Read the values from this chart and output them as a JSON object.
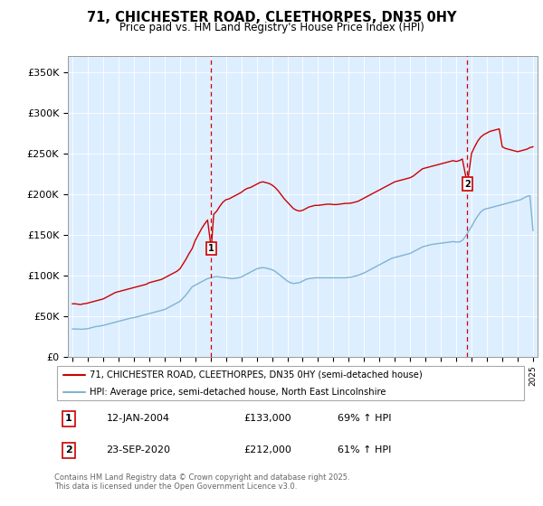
{
  "title": "71, CHICHESTER ROAD, CLEETHORPES, DN35 0HY",
  "subtitle": "Price paid vs. HM Land Registry's House Price Index (HPI)",
  "ylabel_ticks": [
    "£0",
    "£50K",
    "£100K",
    "£150K",
    "£200K",
    "£250K",
    "£300K",
    "£350K"
  ],
  "ytick_values": [
    0,
    50000,
    100000,
    150000,
    200000,
    250000,
    300000,
    350000
  ],
  "ylim": [
    0,
    370000
  ],
  "sale1_year": 2004.04,
  "sale1_price": 133000,
  "sale2_year": 2020.72,
  "sale2_price": 212000,
  "legend_line1": "71, CHICHESTER ROAD, CLEETHORPES, DN35 0HY (semi-detached house)",
  "legend_line2": "HPI: Average price, semi-detached house, North East Lincolnshire",
  "footer": "Contains HM Land Registry data © Crown copyright and database right 2025.\nThis data is licensed under the Open Government Licence v3.0.",
  "red_color": "#cc0000",
  "blue_color": "#7fb3d3",
  "bg_color": "#ddeeff",
  "hpi_x": [
    1995.0,
    1995.1,
    1995.2,
    1995.3,
    1995.4,
    1995.5,
    1995.6,
    1995.7,
    1995.8,
    1995.9,
    1996.0,
    1996.1,
    1996.2,
    1996.3,
    1996.4,
    1996.5,
    1996.6,
    1996.7,
    1996.8,
    1996.9,
    1997.0,
    1997.1,
    1997.2,
    1997.3,
    1997.4,
    1997.5,
    1997.6,
    1997.7,
    1997.8,
    1997.9,
    1998.0,
    1998.2,
    1998.4,
    1998.6,
    1998.8,
    1999.0,
    1999.2,
    1999.4,
    1999.6,
    1999.8,
    2000.0,
    2000.2,
    2000.4,
    2000.6,
    2000.8,
    2001.0,
    2001.2,
    2001.4,
    2001.6,
    2001.8,
    2002.0,
    2002.2,
    2002.4,
    2002.6,
    2002.8,
    2003.0,
    2003.2,
    2003.4,
    2003.6,
    2003.8,
    2004.0,
    2004.2,
    2004.4,
    2004.6,
    2004.8,
    2005.0,
    2005.2,
    2005.4,
    2005.6,
    2005.8,
    2006.0,
    2006.2,
    2006.4,
    2006.6,
    2006.8,
    2007.0,
    2007.2,
    2007.4,
    2007.6,
    2007.8,
    2008.0,
    2008.2,
    2008.4,
    2008.6,
    2008.8,
    2009.0,
    2009.2,
    2009.4,
    2009.6,
    2009.8,
    2010.0,
    2010.2,
    2010.4,
    2010.6,
    2010.8,
    2011.0,
    2011.2,
    2011.4,
    2011.6,
    2011.8,
    2012.0,
    2012.2,
    2012.4,
    2012.6,
    2012.8,
    2013.0,
    2013.2,
    2013.4,
    2013.6,
    2013.8,
    2014.0,
    2014.2,
    2014.4,
    2014.6,
    2014.8,
    2015.0,
    2015.2,
    2015.4,
    2015.6,
    2015.8,
    2016.0,
    2016.2,
    2016.4,
    2016.6,
    2016.8,
    2017.0,
    2017.2,
    2017.4,
    2017.6,
    2017.8,
    2018.0,
    2018.2,
    2018.4,
    2018.6,
    2018.8,
    2019.0,
    2019.2,
    2019.4,
    2019.6,
    2019.8,
    2020.0,
    2020.2,
    2020.4,
    2020.6,
    2020.8,
    2021.0,
    2021.2,
    2021.4,
    2021.6,
    2021.8,
    2022.0,
    2022.2,
    2022.4,
    2022.6,
    2022.8,
    2023.0,
    2023.2,
    2023.4,
    2023.6,
    2023.8,
    2024.0,
    2024.2,
    2024.4,
    2024.6,
    2024.8,
    2025.0
  ],
  "hpi_y": [
    34000,
    34200,
    34100,
    33900,
    33800,
    33700,
    33800,
    34000,
    34100,
    34200,
    34500,
    35000,
    35500,
    36000,
    36500,
    37000,
    37200,
    37500,
    37800,
    38000,
    38500,
    39000,
    39500,
    40000,
    40500,
    41000,
    41500,
    42000,
    42500,
    43000,
    43500,
    44500,
    45500,
    46500,
    47500,
    48000,
    49000,
    50000,
    51000,
    52000,
    53000,
    54000,
    55000,
    56000,
    57000,
    58000,
    60000,
    62000,
    64000,
    66000,
    68000,
    72000,
    76000,
    81000,
    86000,
    88000,
    90000,
    92000,
    94000,
    96000,
    97000,
    98000,
    98500,
    98000,
    97500,
    97000,
    96500,
    96000,
    96500,
    97000,
    98000,
    100000,
    102000,
    104000,
    106000,
    108000,
    109000,
    109500,
    109000,
    108000,
    107000,
    105000,
    102000,
    99000,
    96000,
    93000,
    91000,
    90000,
    90500,
    91000,
    93000,
    95000,
    96000,
    96500,
    97000,
    97000,
    97000,
    97000,
    97000,
    97000,
    97000,
    97000,
    97000,
    97000,
    97000,
    97500,
    98000,
    99000,
    100000,
    101500,
    103000,
    105000,
    107000,
    109000,
    111000,
    113000,
    115000,
    117000,
    119000,
    121000,
    122000,
    123000,
    124000,
    125000,
    126000,
    127000,
    129000,
    131000,
    133000,
    135000,
    136000,
    137000,
    138000,
    138500,
    139000,
    139500,
    140000,
    140500,
    141000,
    141500,
    141000,
    141000,
    143000,
    148000,
    154000,
    160000,
    167000,
    173000,
    178000,
    181000,
    182000,
    183000,
    184000,
    185000,
    186000,
    187000,
    188000,
    189000,
    190000,
    191000,
    192000,
    193000,
    195000,
    197000,
    198000,
    155000
  ],
  "red_x": [
    1995.0,
    1995.1,
    1995.2,
    1995.3,
    1995.4,
    1995.5,
    1995.6,
    1995.7,
    1995.8,
    1995.9,
    1996.0,
    1996.1,
    1996.2,
    1996.3,
    1996.4,
    1996.5,
    1996.6,
    1996.7,
    1996.8,
    1996.9,
    1997.0,
    1997.1,
    1997.2,
    1997.3,
    1997.4,
    1997.5,
    1997.6,
    1997.7,
    1997.8,
    1997.9,
    1998.0,
    1998.2,
    1998.4,
    1998.6,
    1998.8,
    1999.0,
    1999.2,
    1999.4,
    1999.6,
    1999.8,
    2000.0,
    2000.2,
    2000.4,
    2000.6,
    2000.8,
    2001.0,
    2001.2,
    2001.4,
    2001.6,
    2001.8,
    2002.0,
    2002.2,
    2002.4,
    2002.6,
    2002.8,
    2003.0,
    2003.2,
    2003.4,
    2003.6,
    2003.8,
    2004.04,
    2004.2,
    2004.4,
    2004.6,
    2004.8,
    2005.0,
    2005.2,
    2005.4,
    2005.6,
    2005.8,
    2006.0,
    2006.2,
    2006.4,
    2006.6,
    2006.8,
    2007.0,
    2007.2,
    2007.4,
    2007.6,
    2007.8,
    2008.0,
    2008.2,
    2008.4,
    2008.6,
    2008.8,
    2009.0,
    2009.2,
    2009.4,
    2009.6,
    2009.8,
    2010.0,
    2010.2,
    2010.4,
    2010.6,
    2010.8,
    2011.0,
    2011.2,
    2011.4,
    2011.6,
    2011.8,
    2012.0,
    2012.2,
    2012.4,
    2012.6,
    2012.8,
    2013.0,
    2013.2,
    2013.4,
    2013.6,
    2013.8,
    2014.0,
    2014.2,
    2014.4,
    2014.6,
    2014.8,
    2015.0,
    2015.2,
    2015.4,
    2015.6,
    2015.8,
    2016.0,
    2016.2,
    2016.4,
    2016.6,
    2016.8,
    2017.0,
    2017.2,
    2017.4,
    2017.6,
    2017.8,
    2018.0,
    2018.2,
    2018.4,
    2018.6,
    2018.8,
    2019.0,
    2019.2,
    2019.4,
    2019.6,
    2019.8,
    2020.0,
    2020.2,
    2020.4,
    2020.72,
    2021.0,
    2021.2,
    2021.4,
    2021.6,
    2021.8,
    2022.0,
    2022.2,
    2022.4,
    2022.6,
    2022.8,
    2023.0,
    2023.2,
    2023.4,
    2023.6,
    2023.8,
    2024.0,
    2024.2,
    2024.4,
    2024.6,
    2024.8,
    2025.0
  ],
  "red_y": [
    65000,
    65200,
    65000,
    64800,
    64500,
    64200,
    64500,
    65000,
    65200,
    65500,
    66000,
    66500,
    67000,
    67500,
    68000,
    68500,
    69000,
    69500,
    70000,
    70500,
    71000,
    72000,
    73000,
    74000,
    75000,
    76000,
    77000,
    78000,
    79000,
    79500,
    80000,
    81000,
    82000,
    83000,
    84000,
    85000,
    86000,
    87000,
    88000,
    89000,
    91000,
    92000,
    93000,
    94000,
    95000,
    97000,
    99000,
    101000,
    103000,
    105000,
    108000,
    114000,
    120000,
    127000,
    133000,
    143000,
    150000,
    157000,
    163000,
    168000,
    133000,
    175000,
    179000,
    185000,
    190000,
    193000,
    194000,
    196000,
    198000,
    200000,
    202000,
    205000,
    207000,
    208000,
    210000,
    212000,
    214000,
    215000,
    214000,
    213000,
    211000,
    208000,
    204000,
    199000,
    194000,
    190000,
    186000,
    182000,
    180000,
    179000,
    180000,
    182000,
    184000,
    185000,
    186000,
    186000,
    186500,
    187000,
    187500,
    187500,
    187000,
    187000,
    187500,
    188000,
    188500,
    188500,
    189000,
    190000,
    191000,
    193000,
    195000,
    197000,
    199000,
    201000,
    203000,
    205000,
    207000,
    209000,
    211000,
    213000,
    215000,
    216000,
    217000,
    218000,
    219000,
    220000,
    222000,
    225000,
    228000,
    231000,
    232000,
    233000,
    234000,
    235000,
    236000,
    237000,
    238000,
    239000,
    240000,
    241000,
    240000,
    241000,
    243000,
    212000,
    250000,
    258000,
    265000,
    270000,
    273000,
    275000,
    277000,
    278000,
    279000,
    280000,
    258000,
    256000,
    255000,
    254000,
    253000,
    252000,
    253000,
    254000,
    255000,
    257000,
    258000
  ]
}
